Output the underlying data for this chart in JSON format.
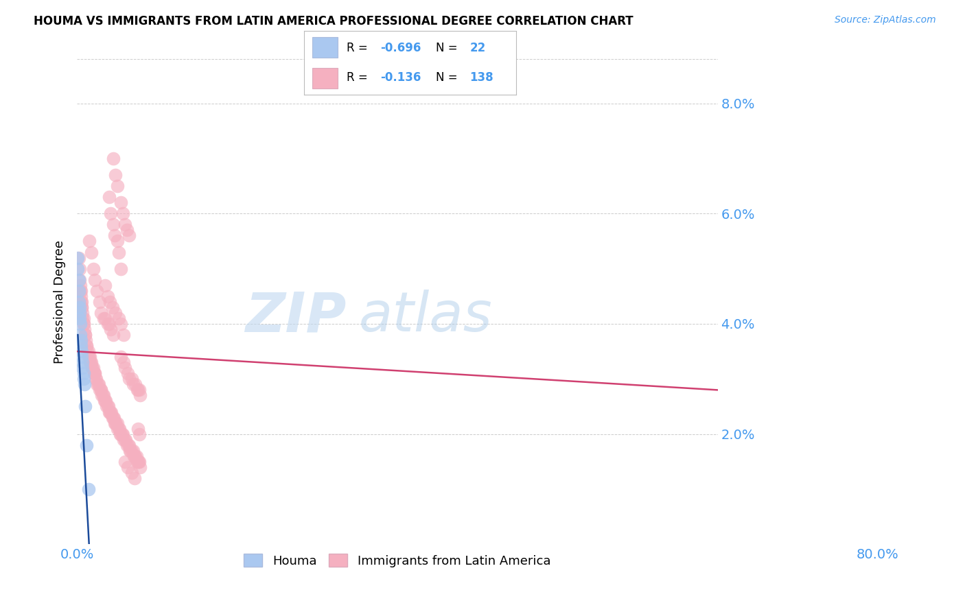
{
  "title": "HOUMA VS IMMIGRANTS FROM LATIN AMERICA PROFESSIONAL DEGREE CORRELATION CHART",
  "source": "Source: ZipAtlas.com",
  "ylabel": "Professional Degree",
  "yticks": [
    "2.0%",
    "4.0%",
    "6.0%",
    "8.0%"
  ],
  "ytick_values": [
    0.02,
    0.04,
    0.06,
    0.08
  ],
  "xlim": [
    0.0,
    0.8
  ],
  "ylim": [
    0.0,
    0.088
  ],
  "blue_color": "#aac8f0",
  "blue_line_color": "#1a4a9a",
  "pink_color": "#f5b0c0",
  "pink_line_color": "#d04070",
  "watermark_zip": "ZIP",
  "watermark_atlas": "atlas",
  "pink_line_x0": 0.0,
  "pink_line_y0": 0.035,
  "pink_line_x1": 0.8,
  "pink_line_y1": 0.028,
  "blue_line_x0": 0.001,
  "blue_line_y0": 0.038,
  "blue_line_x1": 0.015,
  "blue_line_y1": 0.0,
  "houma_points": [
    [
      0.001,
      0.052
    ],
    [
      0.001,
      0.05
    ],
    [
      0.002,
      0.048
    ],
    [
      0.002,
      0.046
    ],
    [
      0.002,
      0.044
    ],
    [
      0.003,
      0.043
    ],
    [
      0.003,
      0.042
    ],
    [
      0.003,
      0.041
    ],
    [
      0.004,
      0.04
    ],
    [
      0.004,
      0.038
    ],
    [
      0.005,
      0.037
    ],
    [
      0.005,
      0.036
    ],
    [
      0.006,
      0.035
    ],
    [
      0.006,
      0.034
    ],
    [
      0.007,
      0.033
    ],
    [
      0.007,
      0.032
    ],
    [
      0.008,
      0.031
    ],
    [
      0.008,
      0.03
    ],
    [
      0.009,
      0.029
    ],
    [
      0.01,
      0.025
    ],
    [
      0.012,
      0.018
    ],
    [
      0.014,
      0.01
    ]
  ],
  "latin_points": [
    [
      0.002,
      0.052
    ],
    [
      0.003,
      0.05
    ],
    [
      0.003,
      0.048
    ],
    [
      0.004,
      0.047
    ],
    [
      0.004,
      0.046
    ],
    [
      0.005,
      0.046
    ],
    [
      0.005,
      0.045
    ],
    [
      0.005,
      0.044
    ],
    [
      0.006,
      0.044
    ],
    [
      0.006,
      0.043
    ],
    [
      0.006,
      0.043
    ],
    [
      0.007,
      0.042
    ],
    [
      0.007,
      0.041
    ],
    [
      0.008,
      0.041
    ],
    [
      0.008,
      0.04
    ],
    [
      0.008,
      0.04
    ],
    [
      0.009,
      0.039
    ],
    [
      0.01,
      0.038
    ],
    [
      0.01,
      0.038
    ],
    [
      0.011,
      0.037
    ],
    [
      0.012,
      0.036
    ],
    [
      0.012,
      0.036
    ],
    [
      0.013,
      0.035
    ],
    [
      0.014,
      0.035
    ],
    [
      0.014,
      0.034
    ],
    [
      0.015,
      0.034
    ],
    [
      0.016,
      0.034
    ],
    [
      0.016,
      0.033
    ],
    [
      0.017,
      0.033
    ],
    [
      0.018,
      0.033
    ],
    [
      0.019,
      0.032
    ],
    [
      0.019,
      0.032
    ],
    [
      0.02,
      0.032
    ],
    [
      0.021,
      0.031
    ],
    [
      0.022,
      0.031
    ],
    [
      0.022,
      0.031
    ],
    [
      0.023,
      0.03
    ],
    [
      0.024,
      0.03
    ],
    [
      0.025,
      0.029
    ],
    [
      0.026,
      0.029
    ],
    [
      0.027,
      0.029
    ],
    [
      0.028,
      0.028
    ],
    [
      0.03,
      0.028
    ],
    [
      0.03,
      0.028
    ],
    [
      0.031,
      0.027
    ],
    [
      0.032,
      0.027
    ],
    [
      0.033,
      0.027
    ],
    [
      0.034,
      0.026
    ],
    [
      0.035,
      0.026
    ],
    [
      0.036,
      0.026
    ],
    [
      0.037,
      0.025
    ],
    [
      0.038,
      0.025
    ],
    [
      0.039,
      0.025
    ],
    [
      0.04,
      0.024
    ],
    [
      0.041,
      0.024
    ],
    [
      0.042,
      0.024
    ],
    [
      0.043,
      0.024
    ],
    [
      0.044,
      0.023
    ],
    [
      0.045,
      0.023
    ],
    [
      0.046,
      0.023
    ],
    [
      0.047,
      0.022
    ],
    [
      0.048,
      0.022
    ],
    [
      0.049,
      0.022
    ],
    [
      0.05,
      0.022
    ],
    [
      0.05,
      0.021
    ],
    [
      0.052,
      0.021
    ],
    [
      0.053,
      0.021
    ],
    [
      0.054,
      0.02
    ],
    [
      0.055,
      0.02
    ],
    [
      0.056,
      0.02
    ],
    [
      0.057,
      0.02
    ],
    [
      0.058,
      0.019
    ],
    [
      0.06,
      0.019
    ],
    [
      0.061,
      0.019
    ],
    [
      0.062,
      0.018
    ],
    [
      0.064,
      0.018
    ],
    [
      0.065,
      0.018
    ],
    [
      0.066,
      0.017
    ],
    [
      0.067,
      0.017
    ],
    [
      0.068,
      0.017
    ],
    [
      0.07,
      0.017
    ],
    [
      0.071,
      0.016
    ],
    [
      0.072,
      0.016
    ],
    [
      0.073,
      0.016
    ],
    [
      0.074,
      0.016
    ],
    [
      0.075,
      0.015
    ],
    [
      0.076,
      0.015
    ],
    [
      0.077,
      0.015
    ],
    [
      0.078,
      0.015
    ],
    [
      0.079,
      0.014
    ],
    [
      0.02,
      0.05
    ],
    [
      0.022,
      0.048
    ],
    [
      0.025,
      0.046
    ],
    [
      0.028,
      0.044
    ],
    [
      0.015,
      0.055
    ],
    [
      0.018,
      0.053
    ],
    [
      0.03,
      0.042
    ],
    [
      0.033,
      0.041
    ],
    [
      0.035,
      0.041
    ],
    [
      0.038,
      0.04
    ],
    [
      0.04,
      0.04
    ],
    [
      0.042,
      0.039
    ],
    [
      0.045,
      0.038
    ],
    [
      0.04,
      0.063
    ],
    [
      0.042,
      0.06
    ],
    [
      0.045,
      0.058
    ],
    [
      0.047,
      0.056
    ],
    [
      0.05,
      0.055
    ],
    [
      0.052,
      0.053
    ],
    [
      0.055,
      0.05
    ],
    [
      0.045,
      0.07
    ],
    [
      0.048,
      0.067
    ],
    [
      0.05,
      0.065
    ],
    [
      0.055,
      0.062
    ],
    [
      0.057,
      0.06
    ],
    [
      0.06,
      0.058
    ],
    [
      0.062,
      0.057
    ],
    [
      0.065,
      0.056
    ],
    [
      0.035,
      0.047
    ],
    [
      0.038,
      0.045
    ],
    [
      0.041,
      0.044
    ],
    [
      0.044,
      0.043
    ],
    [
      0.048,
      0.042
    ],
    [
      0.052,
      0.041
    ],
    [
      0.055,
      0.04
    ],
    [
      0.058,
      0.038
    ],
    [
      0.055,
      0.034
    ],
    [
      0.058,
      0.033
    ],
    [
      0.06,
      0.032
    ],
    [
      0.063,
      0.031
    ],
    [
      0.065,
      0.03
    ],
    [
      0.068,
      0.03
    ],
    [
      0.07,
      0.029
    ],
    [
      0.073,
      0.029
    ],
    [
      0.075,
      0.028
    ],
    [
      0.076,
      0.028
    ],
    [
      0.078,
      0.028
    ],
    [
      0.079,
      0.027
    ],
    [
      0.06,
      0.015
    ],
    [
      0.063,
      0.014
    ],
    [
      0.068,
      0.013
    ],
    [
      0.072,
      0.012
    ],
    [
      0.076,
      0.021
    ],
    [
      0.078,
      0.02
    ]
  ]
}
